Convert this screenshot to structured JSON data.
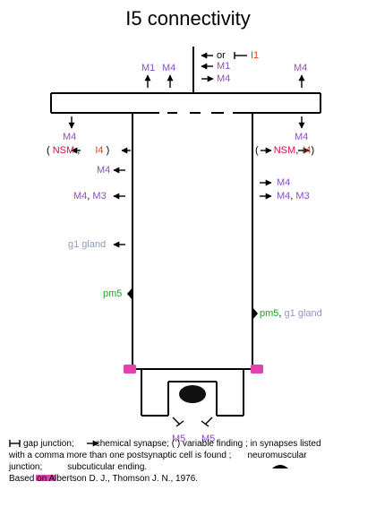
{
  "title": "I5 connectivity",
  "top_labels": {
    "or": "or",
    "i1": "I1",
    "m1_top": "M1",
    "m4_top": "M4",
    "m1_left": "M1",
    "m4_left": "M4",
    "m4_far_right": "M4"
  },
  "left_labels": {
    "m4": "M4",
    "nsm": "NSM",
    "i4": "I4",
    "m4b": "M4",
    "m4c": "M4",
    "m3": "M3",
    "g1": "g1 gland",
    "pm5": "pm5"
  },
  "right_labels": {
    "m4": "M4",
    "nsm": "NSM",
    "i4": "I4",
    "m4b": "M4",
    "m4c": "M4",
    "m3": "M3",
    "pm5": "pm5",
    "g1": "g1 gland"
  },
  "bottom_labels": {
    "m5_left": "M5",
    "m5_right": "M5"
  },
  "legend": {
    "gap": "gap junction;",
    "chem": "chemical synapse; (  ) variable finding ; in synapses listed",
    "comma": "with a comma more than one postsynaptic cell is found ;",
    "nmj": "neuromuscular",
    "junction": "junction;",
    "subcut": "subcuticular ending.",
    "based": "Based on Albertson D. J., Thomson J. N., 1976."
  },
  "colors": {
    "muscle": "#8a4fc0",
    "interneuron": "#e23a1a",
    "nsm": "#d0104a",
    "gland": "#8f98c0",
    "pharyngeal": "#1aa81a",
    "subcuticular": "#e040b0"
  }
}
